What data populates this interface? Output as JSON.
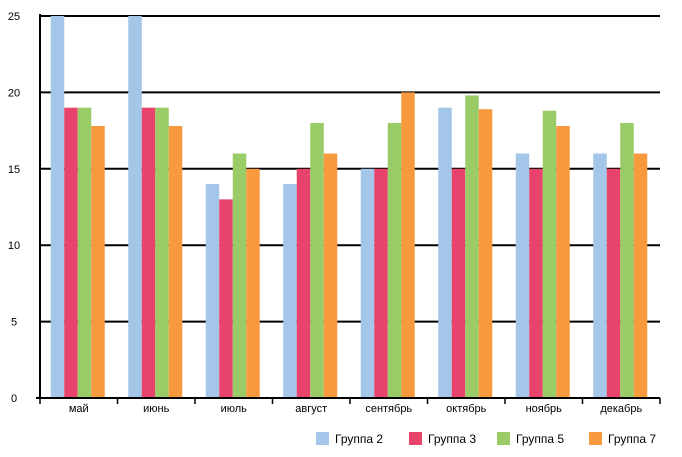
{
  "chart_data": {
    "type": "bar",
    "categories": [
      "май",
      "июнь",
      "июль",
      "август",
      "сентябрь",
      "октябрь",
      "ноябрь",
      "декабрь"
    ],
    "series": [
      {
        "name": "Группа 2",
        "color": "#a4c6e8",
        "values": [
          25,
          25,
          14,
          14,
          15,
          19,
          16,
          16
        ]
      },
      {
        "name": "Группа 3",
        "color": "#e8436b",
        "values": [
          19,
          19,
          13,
          15,
          15,
          15,
          15,
          15
        ]
      },
      {
        "name": "Группа 5",
        "color": "#99cc66",
        "values": [
          19,
          19,
          16,
          18,
          18,
          19.8,
          18.8,
          18
        ]
      },
      {
        "name": "Группа 7",
        "color": "#f79a3e",
        "values": [
          17.8,
          17.8,
          15,
          16,
          20,
          18.9,
          17.8,
          16
        ]
      }
    ],
    "yticks": [
      0,
      5,
      10,
      15,
      20,
      25
    ],
    "ylim": [
      0,
      25
    ],
    "grid": true,
    "legend_position": "bottom-right"
  }
}
